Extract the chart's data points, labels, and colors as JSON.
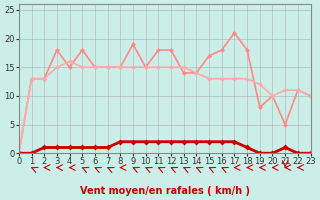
{
  "title": "",
  "xlabel": "Vent moyen/en rafales ( km/h )",
  "ylabel": "",
  "bg_color": "#cceee8",
  "grid_color": "#aaaaaa",
  "xlim": [
    0,
    23
  ],
  "ylim": [
    0,
    26
  ],
  "yticks": [
    0,
    5,
    10,
    15,
    20,
    25
  ],
  "xticks": [
    0,
    1,
    2,
    3,
    4,
    5,
    6,
    7,
    8,
    9,
    10,
    11,
    12,
    13,
    14,
    15,
    16,
    17,
    18,
    19,
    20,
    21,
    22,
    23
  ],
  "line1": {
    "x": [
      0,
      1,
      2,
      3,
      4,
      5,
      6,
      7,
      8,
      9,
      10,
      11,
      12,
      13,
      14,
      15,
      16,
      17,
      18,
      19,
      20,
      21,
      22,
      23
    ],
    "y": [
      0,
      0,
      1,
      1,
      1,
      1,
      1,
      1,
      2,
      2,
      2,
      2,
      2,
      2,
      2,
      2,
      2,
      2,
      1,
      0,
      0,
      1,
      0,
      0
    ],
    "color": "#cc0000",
    "lw": 1.5,
    "marker": "D",
    "ms": 3
  },
  "line2": {
    "x": [
      0,
      1,
      2,
      3,
      4,
      5,
      6,
      7,
      8,
      9,
      10,
      11,
      12,
      13,
      14,
      15,
      16,
      17,
      18,
      19,
      20,
      21,
      22,
      23
    ],
    "y": [
      0,
      0,
      1,
      1,
      1,
      1,
      1,
      1,
      2,
      2,
      2,
      2,
      2,
      2,
      2,
      2,
      2,
      2,
      1,
      0,
      0,
      1,
      0,
      0
    ],
    "color": "#ff4444",
    "lw": 1.2,
    "marker": "D",
    "ms": 2.5
  },
  "line3": {
    "x": [
      0,
      1,
      2,
      3,
      4,
      5,
      6,
      7,
      8,
      9,
      10,
      11,
      12,
      13,
      14,
      15,
      16,
      17,
      18,
      19,
      20,
      21,
      22,
      23
    ],
    "y": [
      0,
      13,
      13,
      18,
      15,
      18,
      15,
      15,
      15,
      19,
      15,
      18,
      18,
      14,
      14,
      17,
      18,
      21,
      18,
      8,
      10,
      5,
      11,
      10
    ],
    "color": "#ff8888",
    "lw": 1.2,
    "marker": "D",
    "ms": 2.5
  },
  "line4": {
    "x": [
      0,
      1,
      2,
      3,
      4,
      5,
      6,
      7,
      8,
      9,
      10,
      11,
      12,
      13,
      14,
      15,
      16,
      17,
      18,
      19,
      20,
      21,
      22,
      23
    ],
    "y": [
      0,
      13,
      13,
      15,
      16,
      15,
      15,
      15,
      15,
      15,
      15,
      15,
      15,
      15,
      14,
      13,
      13,
      13,
      13,
      12,
      10,
      11,
      11,
      10
    ],
    "color": "#ffaaaa",
    "lw": 1.2,
    "marker": "D",
    "ms": 2.5
  },
  "arrows_x": [
    1,
    2,
    3,
    4,
    5,
    6,
    7,
    8,
    9,
    10,
    11,
    12,
    13,
    14,
    15,
    16,
    17,
    18,
    19,
    20,
    21,
    22,
    23
  ],
  "arrow_color": "#cc0000"
}
